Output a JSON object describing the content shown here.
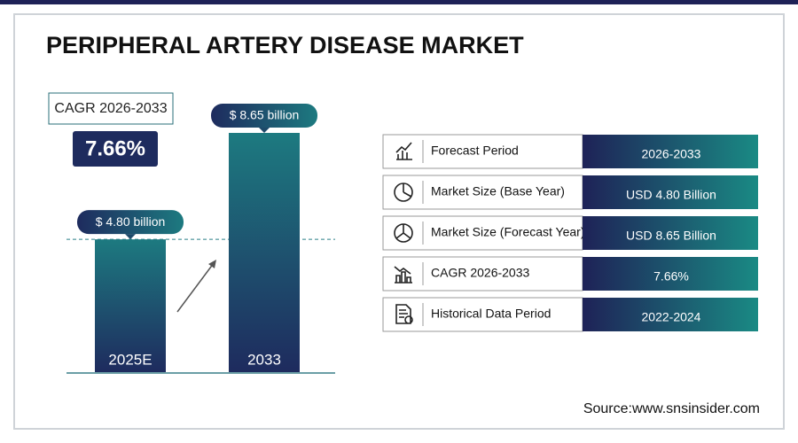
{
  "title": "PERIPHERAL ARTERY DISEASE MARKET",
  "cagr": {
    "label": "CAGR 2026-2033",
    "value": "7.66%"
  },
  "chart_data": {
    "type": "bar",
    "categories": [
      "2025E",
      "2033"
    ],
    "values": [
      4.8,
      8.65
    ],
    "value_labels": [
      "$ 4.80 billion",
      "$ 8.65 billion"
    ]
  },
  "table": {
    "rows": [
      [
        "Forecast Period",
        "2026-2033"
      ],
      [
        "Market Size (Base Year)",
        "USD 4.80 Billion"
      ],
      [
        "Market Size (Forecast Year)",
        "USD 8.65 Billion"
      ],
      [
        "CAGR 2026-2033",
        "7.66%"
      ],
      [
        "Historical Data Period",
        "2022-2024"
      ]
    ]
  },
  "source": "Source:www.snsinsider.com"
}
